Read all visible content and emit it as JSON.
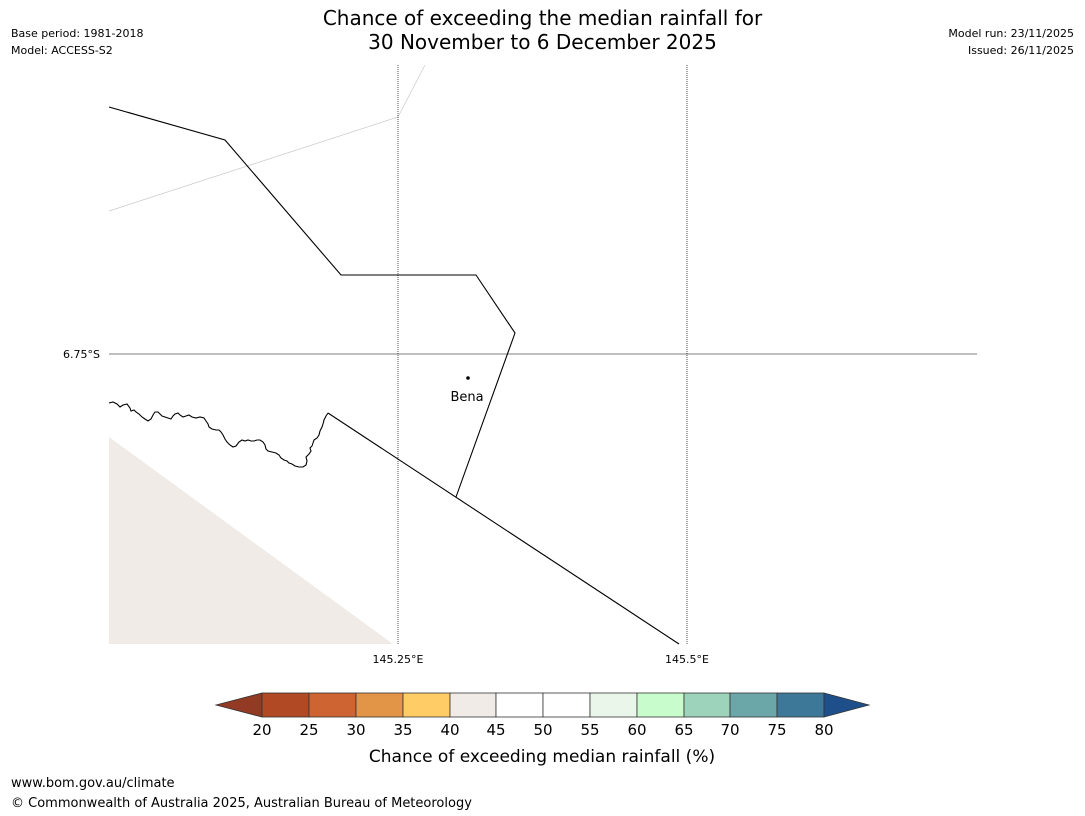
{
  "header": {
    "title_line1": "Chance of exceeding the median rainfall for",
    "title_line2": "30 November to 6 December 2025",
    "base_period": "Base period: 1981-2018",
    "model": "Model: ACCESS-S2",
    "model_run": "Model run: 23/11/2025",
    "issued": "Issued: 26/11/2025"
  },
  "map": {
    "lat_label": "6.75°S",
    "lon_labels": [
      "145.25°E",
      "145.5°E"
    ],
    "place_name": "Bena",
    "shaded_area_color": "#f0ebe6",
    "boundary_color": "#000000"
  },
  "colorbar": {
    "ticks": [
      "20",
      "25",
      "30",
      "35",
      "40",
      "45",
      "50",
      "55",
      "60",
      "65",
      "70",
      "75",
      "80"
    ],
    "colors": [
      "#b14a24",
      "#cd6431",
      "#e29447",
      "#ffcc66",
      "#f0ebe6",
      "#ffffff",
      "#ffffff",
      "#eaf6ea",
      "#c8fccc",
      "#9dd3bb",
      "#6ba6a8",
      "#3e7899"
    ],
    "under_color": "#923a23",
    "over_color": "#1e4f8a",
    "label": "Chance of exceeding median rainfall (%)"
  },
  "footer": {
    "url": "www.bom.gov.au/climate",
    "copyright": "© Commonwealth of Australia 2025, Australian Bureau of Meteorology"
  }
}
